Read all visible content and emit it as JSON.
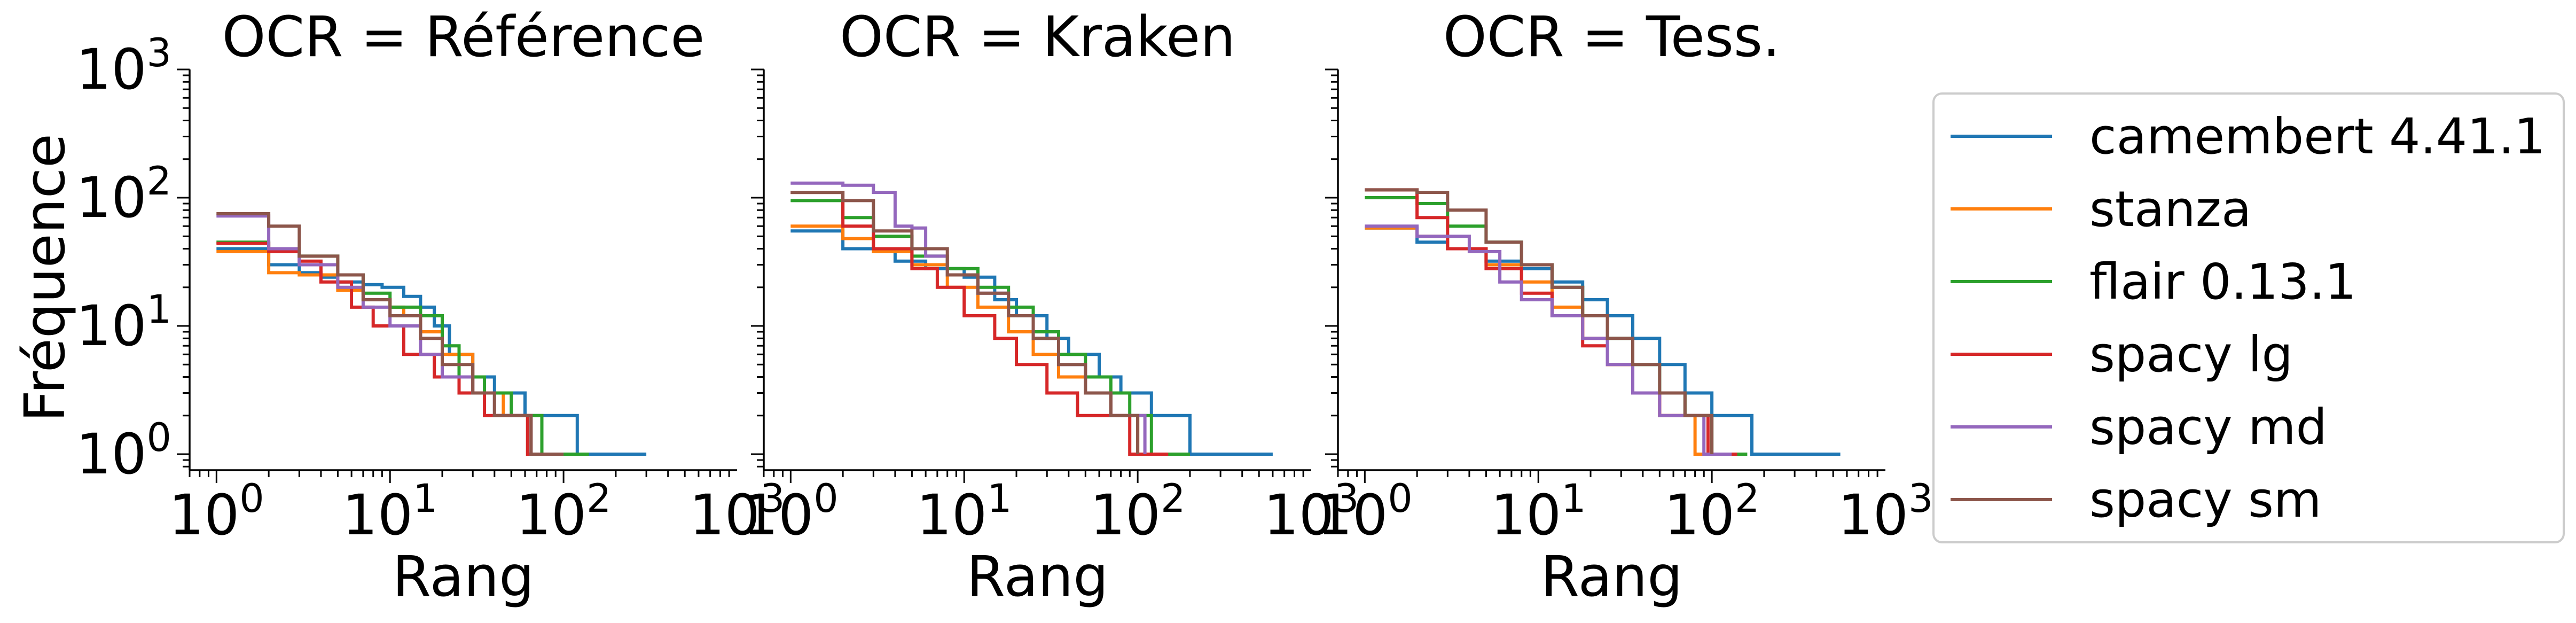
{
  "figure": {
    "ylabel": "Fréquence",
    "legend_position": "right, outside"
  },
  "series": [
    {
      "name": "camembert 4.41.1",
      "color": "#1f77b4"
    },
    {
      "name": "stanza",
      "color": "#ff7f0e"
    },
    {
      "name": "flair 0.13.1",
      "color": "#2ca02c"
    },
    {
      "name": "spacy lg",
      "color": "#d62728"
    },
    {
      "name": "spacy md",
      "color": "#9467bd"
    },
    {
      "name": "spacy sm",
      "color": "#8c564b"
    }
  ],
  "chart_data": [
    {
      "type": "line",
      "title": "OCR = Référence",
      "xlabel": "Rang",
      "ylabel": "Fréquence",
      "xscale": "log",
      "yscale": "log",
      "xlim": [
        0.7,
        1000
      ],
      "ylim": [
        0.75,
        1000
      ],
      "xticks": [
        {
          "base": "10",
          "exp": "0"
        },
        {
          "base": "10",
          "exp": "1"
        },
        {
          "base": "10",
          "exp": "2"
        },
        {
          "base": "10",
          "exp": "3"
        }
      ],
      "yticks": [
        {
          "base": "10",
          "exp": "0"
        },
        {
          "base": "10",
          "exp": "1"
        },
        {
          "base": "10",
          "exp": "2"
        },
        {
          "base": "10",
          "exp": "3"
        }
      ],
      "grid": false,
      "series": [
        {
          "name": "camembert 4.41.1",
          "points": [
            [
              1,
              40
            ],
            [
              2,
              30
            ],
            [
              3,
              26
            ],
            [
              4,
              24
            ],
            [
              5,
              22
            ],
            [
              6,
              22
            ],
            [
              7,
              21
            ],
            [
              9,
              20
            ],
            [
              12,
              17
            ],
            [
              15,
              14
            ],
            [
              18,
              10
            ],
            [
              22,
              6
            ],
            [
              30,
              4
            ],
            [
              40,
              3
            ],
            [
              60,
              2
            ],
            [
              120,
              1
            ],
            [
              300,
              1
            ]
          ]
        },
        {
          "name": "stanza",
          "points": [
            [
              1,
              38
            ],
            [
              2,
              26
            ],
            [
              3,
              25
            ],
            [
              5,
              19
            ],
            [
              7,
              16
            ],
            [
              10,
              14
            ],
            [
              12,
              12
            ],
            [
              15,
              9
            ],
            [
              20,
              6
            ],
            [
              30,
              3
            ],
            [
              45,
              2
            ],
            [
              65,
              1
            ],
            [
              120,
              1
            ]
          ]
        },
        {
          "name": "flair 0.13.1",
          "points": [
            [
              1,
              45
            ],
            [
              2,
              40
            ],
            [
              3,
              35
            ],
            [
              5,
              25
            ],
            [
              7,
              18
            ],
            [
              10,
              14
            ],
            [
              15,
              12
            ],
            [
              20,
              7
            ],
            [
              25,
              4
            ],
            [
              35,
              3
            ],
            [
              50,
              2
            ],
            [
              75,
              1
            ],
            [
              140,
              1
            ]
          ]
        },
        {
          "name": "spacy lg",
          "points": [
            [
              1,
              44
            ],
            [
              2,
              38
            ],
            [
              3,
              32
            ],
            [
              4,
              22
            ],
            [
              6,
              14
            ],
            [
              8,
              10
            ],
            [
              12,
              6
            ],
            [
              18,
              4
            ],
            [
              25,
              3
            ],
            [
              35,
              2
            ],
            [
              62,
              1
            ],
            [
              90,
              1
            ]
          ]
        },
        {
          "name": "spacy md",
          "points": [
            [
              1,
              72
            ],
            [
              2,
              40
            ],
            [
              3,
              30
            ],
            [
              5,
              20
            ],
            [
              7,
              14
            ],
            [
              10,
              10
            ],
            [
              15,
              6
            ],
            [
              20,
              4
            ],
            [
              30,
              3
            ],
            [
              40,
              2
            ],
            [
              65,
              1
            ],
            [
              100,
              1
            ]
          ]
        },
        {
          "name": "spacy sm",
          "points": [
            [
              1,
              75
            ],
            [
              2,
              60
            ],
            [
              3,
              35
            ],
            [
              5,
              25
            ],
            [
              7,
              16
            ],
            [
              10,
              12
            ],
            [
              15,
              8
            ],
            [
              20,
              5
            ],
            [
              30,
              3
            ],
            [
              40,
              2
            ],
            [
              65,
              1
            ],
            [
              100,
              1
            ]
          ]
        }
      ]
    },
    {
      "type": "line",
      "title": "OCR = Kraken",
      "xlabel": "Rang",
      "ylabel": "",
      "xscale": "log",
      "yscale": "log",
      "xlim": [
        0.7,
        1000
      ],
      "ylim": [
        0.75,
        1000
      ],
      "xticks": [
        {
          "base": "10",
          "exp": "0"
        },
        {
          "base": "10",
          "exp": "1"
        },
        {
          "base": "10",
          "exp": "2"
        },
        {
          "base": "10",
          "exp": "3"
        }
      ],
      "yticks": [],
      "grid": false,
      "series": [
        {
          "name": "camembert 4.41.1",
          "points": [
            [
              1,
              55
            ],
            [
              2,
              40
            ],
            [
              4,
              32
            ],
            [
              6,
              28
            ],
            [
              10,
              24
            ],
            [
              15,
              16
            ],
            [
              20,
              12
            ],
            [
              30,
              8
            ],
            [
              40,
              6
            ],
            [
              60,
              4
            ],
            [
              80,
              3
            ],
            [
              120,
              2
            ],
            [
              200,
              1
            ],
            [
              600,
              1
            ]
          ]
        },
        {
          "name": "stanza",
          "points": [
            [
              1,
              60
            ],
            [
              2,
              48
            ],
            [
              3,
              38
            ],
            [
              5,
              30
            ],
            [
              8,
              20
            ],
            [
              12,
              14
            ],
            [
              18,
              9
            ],
            [
              25,
              6
            ],
            [
              35,
              4
            ],
            [
              50,
              3
            ],
            [
              70,
              2
            ],
            [
              100,
              1
            ],
            [
              170,
              1
            ]
          ]
        },
        {
          "name": "flair 0.13.1",
          "points": [
            [
              1,
              95
            ],
            [
              2,
              70
            ],
            [
              3,
              50
            ],
            [
              5,
              35
            ],
            [
              8,
              28
            ],
            [
              12,
              20
            ],
            [
              18,
              14
            ],
            [
              25,
              9
            ],
            [
              35,
              6
            ],
            [
              50,
              4
            ],
            [
              70,
              3
            ],
            [
              90,
              2
            ],
            [
              120,
              1
            ],
            [
              200,
              1
            ]
          ]
        },
        {
          "name": "spacy lg",
          "points": [
            [
              1,
              110
            ],
            [
              2,
              60
            ],
            [
              3,
              40
            ],
            [
              5,
              28
            ],
            [
              7,
              20
            ],
            [
              10,
              12
            ],
            [
              15,
              8
            ],
            [
              20,
              5
            ],
            [
              30,
              3
            ],
            [
              45,
              2
            ],
            [
              90,
              1
            ],
            [
              150,
              1
            ]
          ]
        },
        {
          "name": "spacy md",
          "points": [
            [
              1,
              130
            ],
            [
              2,
              125
            ],
            [
              3,
              110
            ],
            [
              4,
              60
            ],
            [
              5,
              58
            ],
            [
              6,
              35
            ],
            [
              8,
              25
            ],
            [
              12,
              18
            ],
            [
              18,
              12
            ],
            [
              25,
              8
            ],
            [
              35,
              5
            ],
            [
              50,
              3
            ],
            [
              70,
              2
            ],
            [
              110,
              1
            ]
          ]
        },
        {
          "name": "spacy sm",
          "points": [
            [
              1,
              110
            ],
            [
              2,
              95
            ],
            [
              3,
              55
            ],
            [
              5,
              40
            ],
            [
              8,
              25
            ],
            [
              12,
              18
            ],
            [
              18,
              12
            ],
            [
              25,
              8
            ],
            [
              35,
              5
            ],
            [
              50,
              3
            ],
            [
              70,
              2
            ],
            [
              100,
              1
            ]
          ]
        }
      ]
    },
    {
      "type": "line",
      "title": "OCR = Tess.",
      "xlabel": "Rang",
      "ylabel": "",
      "xscale": "log",
      "yscale": "log",
      "xlim": [
        0.7,
        1000
      ],
      "ylim": [
        0.75,
        1000
      ],
      "xticks": [
        {
          "base": "10",
          "exp": "0"
        },
        {
          "base": "10",
          "exp": "1"
        },
        {
          "base": "10",
          "exp": "2"
        },
        {
          "base": "10",
          "exp": "3"
        }
      ],
      "yticks": [],
      "grid": false,
      "series": [
        {
          "name": "camembert 4.41.1",
          "points": [
            [
              1,
              58
            ],
            [
              2,
              45
            ],
            [
              3,
              40
            ],
            [
              5,
              32
            ],
            [
              8,
              28
            ],
            [
              12,
              22
            ],
            [
              18,
              16
            ],
            [
              25,
              12
            ],
            [
              35,
              8
            ],
            [
              50,
              5
            ],
            [
              70,
              3
            ],
            [
              100,
              2
            ],
            [
              170,
              1
            ],
            [
              550,
              1
            ]
          ]
        },
        {
          "name": "stanza",
          "points": [
            [
              1,
              58
            ],
            [
              2,
              50
            ],
            [
              3,
              40
            ],
            [
              5,
              30
            ],
            [
              8,
              22
            ],
            [
              12,
              14
            ],
            [
              18,
              8
            ],
            [
              25,
              5
            ],
            [
              35,
              3
            ],
            [
              50,
              2
            ],
            [
              80,
              1
            ],
            [
              130,
              1
            ]
          ]
        },
        {
          "name": "flair 0.13.1",
          "points": [
            [
              1,
              100
            ],
            [
              2,
              90
            ],
            [
              3,
              60
            ],
            [
              5,
              45
            ],
            [
              8,
              30
            ],
            [
              12,
              20
            ],
            [
              18,
              12
            ],
            [
              25,
              8
            ],
            [
              35,
              5
            ],
            [
              50,
              3
            ],
            [
              70,
              2
            ],
            [
              100,
              1
            ],
            [
              160,
              1
            ]
          ]
        },
        {
          "name": "spacy lg",
          "points": [
            [
              1,
              115
            ],
            [
              2,
              70
            ],
            [
              3,
              40
            ],
            [
              5,
              28
            ],
            [
              8,
              18
            ],
            [
              12,
              12
            ],
            [
              18,
              7
            ],
            [
              25,
              5
            ],
            [
              35,
              3
            ],
            [
              50,
              2
            ],
            [
              95,
              1
            ],
            [
              140,
              1
            ]
          ]
        },
        {
          "name": "spacy md",
          "points": [
            [
              1,
              60
            ],
            [
              2,
              50
            ],
            [
              4,
              38
            ],
            [
              6,
              22
            ],
            [
              8,
              16
            ],
            [
              12,
              12
            ],
            [
              18,
              8
            ],
            [
              25,
              5
            ],
            [
              35,
              3
            ],
            [
              50,
              2
            ],
            [
              90,
              1
            ],
            [
              130,
              1
            ]
          ]
        },
        {
          "name": "spacy sm",
          "points": [
            [
              1,
              115
            ],
            [
              2,
              110
            ],
            [
              3,
              80
            ],
            [
              5,
              45
            ],
            [
              8,
              30
            ],
            [
              12,
              20
            ],
            [
              18,
              12
            ],
            [
              25,
              8
            ],
            [
              35,
              5
            ],
            [
              50,
              3
            ],
            [
              70,
              2
            ],
            [
              100,
              1
            ]
          ]
        }
      ]
    }
  ]
}
